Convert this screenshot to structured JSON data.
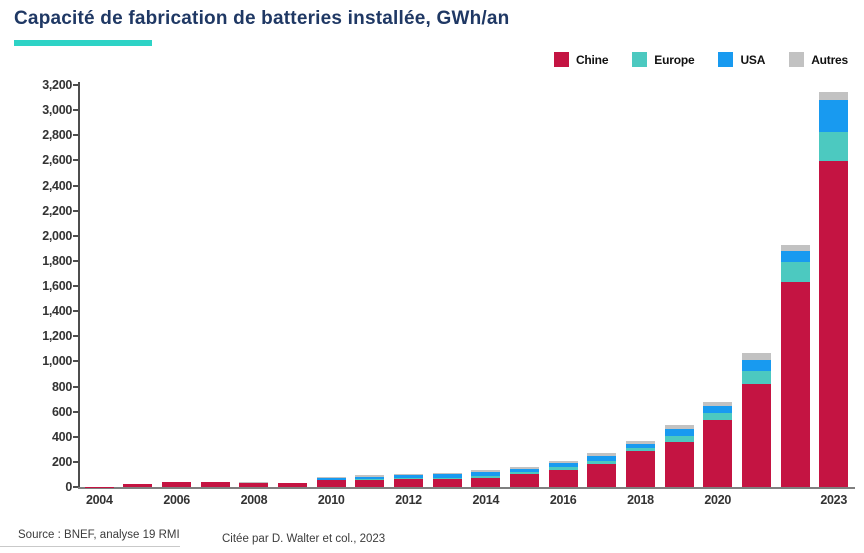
{
  "header": {
    "title": "Capacité de fabrication de batteries installée, GWh/an"
  },
  "accent_colors": {
    "title_navy": "#1f3864",
    "underline_teal": "#2ed3c6"
  },
  "legend": [
    {
      "label": "Chine",
      "color": "#c41442"
    },
    {
      "label": "Europe",
      "color": "#4cc9c0"
    },
    {
      "label": "USA",
      "color": "#189af0"
    },
    {
      "label": "Autres",
      "color": "#c2c2c2"
    }
  ],
  "footer": {
    "source": "Source : BNEF, analyse 19 RMI",
    "citation": "Citée par D. Walter et col., 2023"
  },
  "chart_data": {
    "type": "bar",
    "stacked": true,
    "title": "Capacité de fabrication de batteries installée, GWh/an",
    "xlabel": "",
    "ylabel": "GWh/an",
    "categories": [
      "2004",
      "2005",
      "2006",
      "2007",
      "2008",
      "2009",
      "2010",
      "2011",
      "2012",
      "2013",
      "2014",
      "2015",
      "2016",
      "2017",
      "2018",
      "2019",
      "2020",
      "2021",
      "2022",
      "2023"
    ],
    "series": [
      {
        "name": "Chine",
        "color": "#c41442",
        "values": [
          3,
          25,
          37,
          37,
          35,
          32,
          52,
          58,
          62,
          62,
          75,
          100,
          132,
          184,
          290,
          355,
          532,
          817,
          1628,
          2599
        ]
      },
      {
        "name": "Europe",
        "color": "#4cc9c0",
        "values": [
          0,
          0,
          0,
          0,
          0,
          0,
          6,
          8,
          9,
          10,
          12,
          20,
          26,
          26,
          24,
          50,
          58,
          110,
          163,
          224
        ]
      },
      {
        "name": "USA",
        "color": "#189af0",
        "values": [
          0,
          0,
          0,
          0,
          0,
          0,
          12,
          16,
          21,
          28,
          32,
          26,
          32,
          40,
          32,
          60,
          53,
          87,
          87,
          258
        ]
      },
      {
        "name": "Autres",
        "color": "#c2c2c2",
        "values": [
          0,
          1,
          1,
          1,
          1,
          2,
          8,
          10,
          12,
          15,
          15,
          14,
          20,
          20,
          17,
          30,
          36,
          53,
          50,
          67
        ]
      }
    ],
    "totals": [
      3,
      26,
      38,
      38,
      36,
      34,
      78,
      92,
      104,
      115,
      134,
      160,
      210,
      270,
      363,
      495,
      679,
      1067,
      1928,
      3148
    ],
    "ylim": [
      0,
      3200
    ],
    "ytick_step": 200,
    "ytick_labels": [
      "0",
      "200",
      "400",
      "600",
      "800",
      "1,000",
      "1,200",
      "1,400",
      "1,600",
      "1,800",
      "2,000",
      "2,200",
      "2,400",
      "2,600",
      "2,800",
      "3,000",
      "3,200"
    ],
    "xtick_labels": [
      "2004",
      "2006",
      "2008",
      "2010",
      "2012",
      "2014",
      "2016",
      "2018",
      "2020",
      "2023"
    ],
    "grid": false,
    "legend_position": "top-right"
  }
}
